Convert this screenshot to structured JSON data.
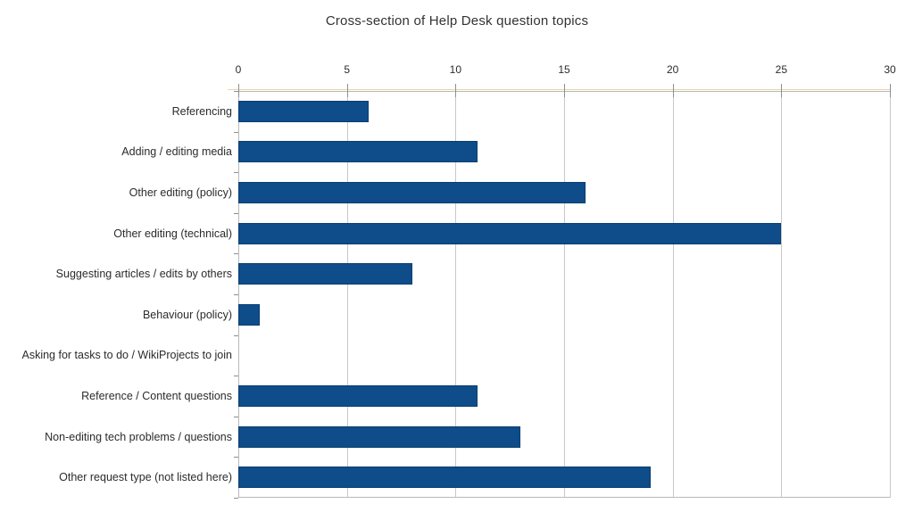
{
  "chart_data": {
    "type": "bar",
    "orientation": "horizontal",
    "title": "Cross-section of Help Desk question topics",
    "categories": [
      "Referencing",
      "Adding / editing media",
      "Other editing (policy)",
      "Other editing (technical)",
      "Suggesting articles / edits by others",
      "Behaviour (policy)",
      "Asking for tasks to do / WikiProjects to join",
      "Reference / Content questions",
      "Non-editing tech problems / questions",
      "Other request type (not listed here)"
    ],
    "values": [
      6,
      11,
      16,
      25,
      8,
      1,
      0,
      11,
      13,
      19
    ],
    "xlabel": "",
    "ylabel": "",
    "xlim": [
      0,
      30
    ],
    "xticks": [
      0,
      5,
      10,
      15,
      20,
      25,
      30
    ],
    "grid": true,
    "legend": false,
    "colors": {
      "bar_fill": "#0e4c8a",
      "bar_border": "#0b3e71",
      "grid_line": "#c8c8c8",
      "axis_line": "#b9b9b9",
      "tick_mark": "#8f8f8f",
      "axis_accent": "#ecd0ae",
      "text": "#2b2b2b",
      "title_text": "#333333",
      "background": "#ffffff"
    }
  }
}
